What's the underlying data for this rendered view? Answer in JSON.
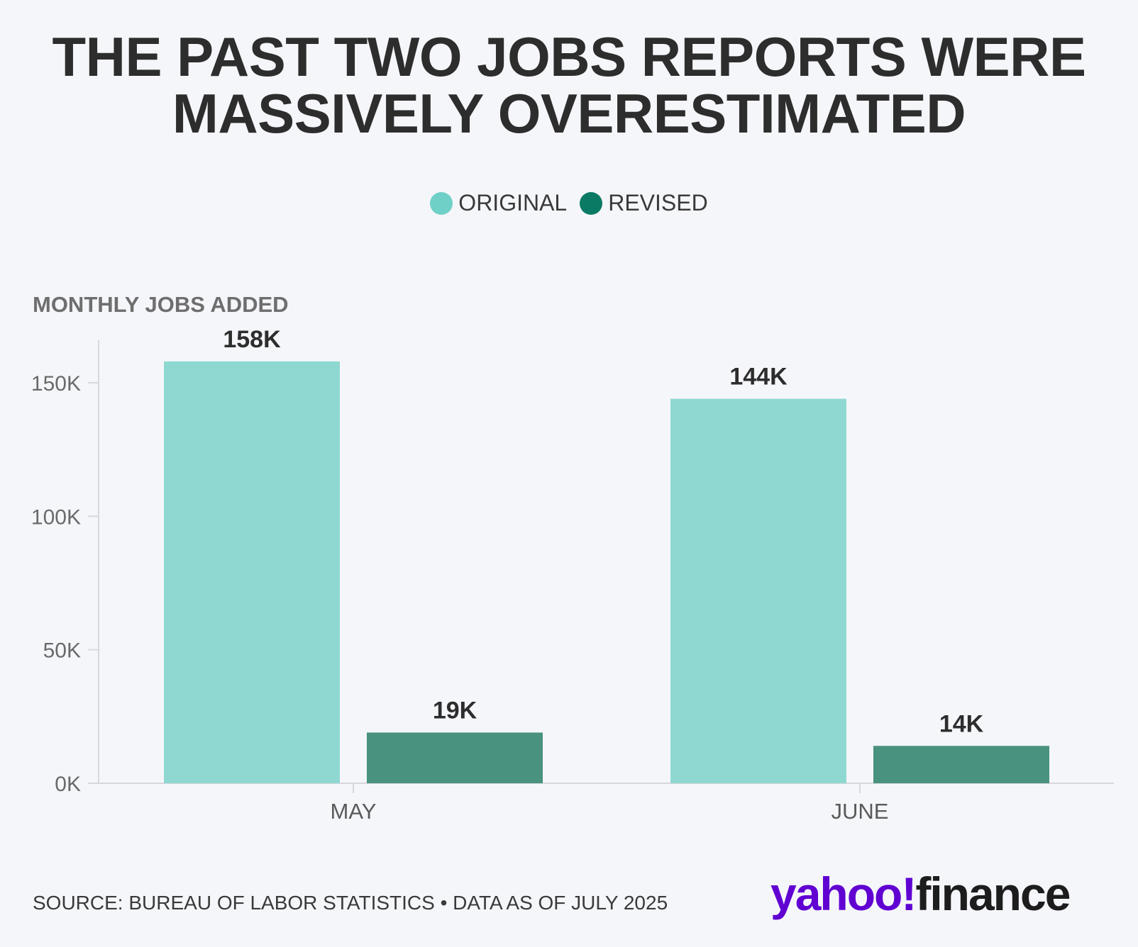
{
  "title": {
    "line1": "THE PAST TWO JOBS REPORTS WERE",
    "line2": "MASSIVELY OVERESTIMATED"
  },
  "legend": [
    {
      "label": "ORIGINAL",
      "color": "#6fd0c7"
    },
    {
      "label": "REVISED",
      "color": "#0a7a64"
    }
  ],
  "source": "SOURCE: BUREAU OF LABOR STATISTICS • DATA AS OF JULY 2025",
  "logo": {
    "part1": "yahoo!",
    "part2": "finance"
  },
  "chart_data": {
    "type": "bar",
    "ylabel": "MONTHLY JOBS ADDED",
    "categories": [
      "MAY",
      "JUNE"
    ],
    "series": [
      {
        "name": "ORIGINAL",
        "values": [
          158,
          144
        ],
        "labels": [
          "158K",
          "144K"
        ],
        "color": "#8fd8d2"
      },
      {
        "name": "REVISED",
        "values": [
          19,
          14
        ],
        "labels": [
          "19K",
          "14K"
        ],
        "color": "#4a9280"
      }
    ],
    "ylim": [
      0,
      170
    ],
    "yticks": [
      0,
      50,
      100,
      150
    ],
    "ytick_labels": [
      "0K",
      "50K",
      "100K",
      "150K"
    ],
    "grid": false,
    "legend_position": "top-center"
  }
}
